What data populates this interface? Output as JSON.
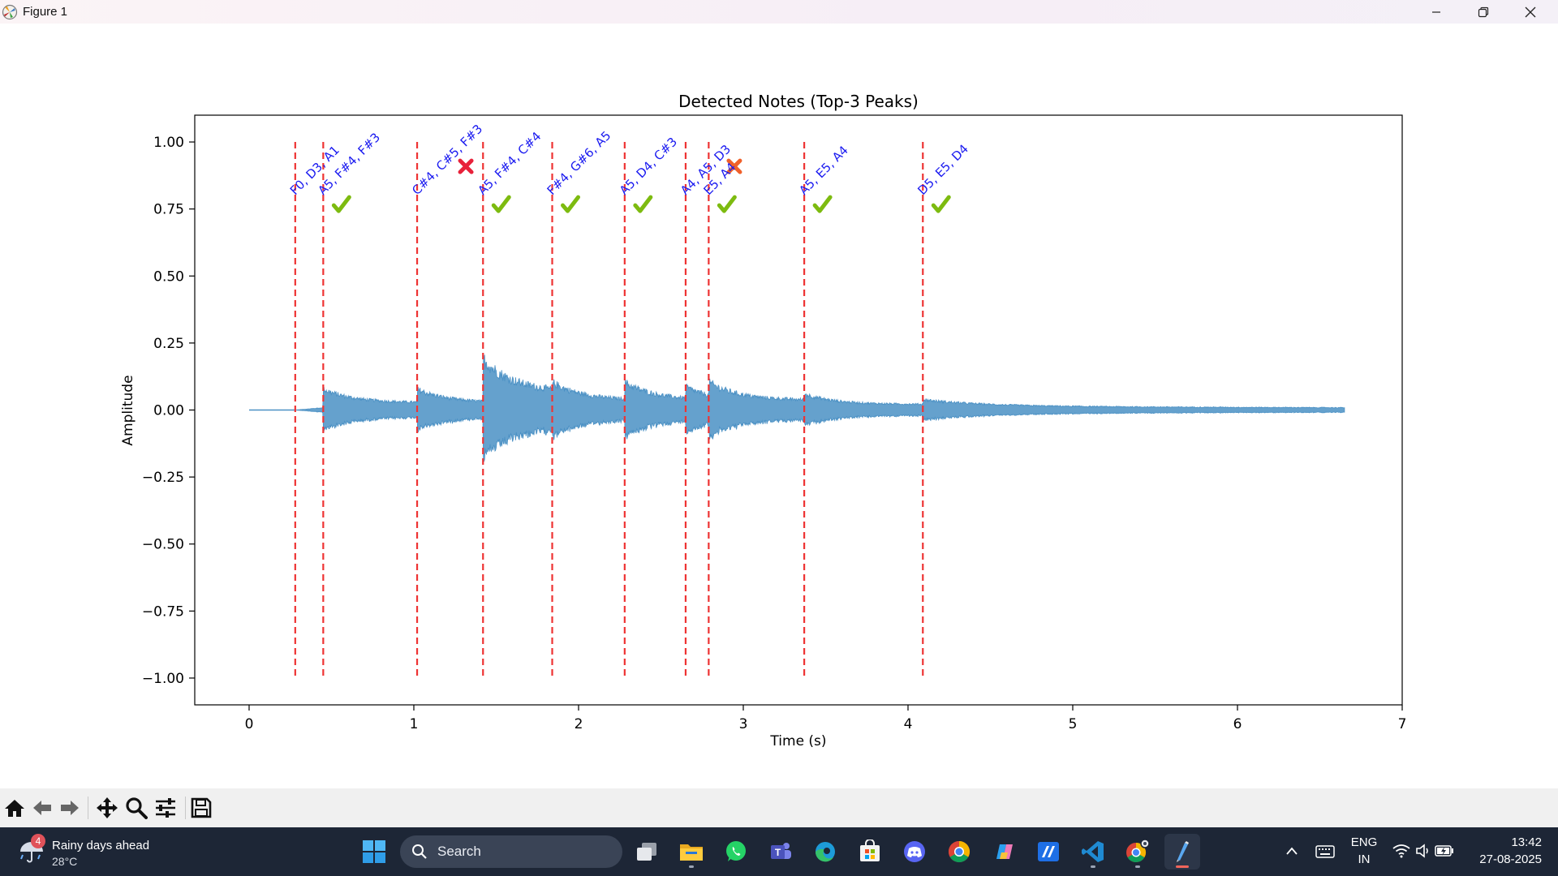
{
  "window": {
    "title": "Figure 1",
    "controls": [
      "minimize",
      "restore",
      "close"
    ]
  },
  "chart_data": {
    "type": "line",
    "title": "Detected Notes (Top-3 Peaks)",
    "xlabel": "Time (s)",
    "ylabel": "Amplitude",
    "xlim": [
      -0.33,
      7.0
    ],
    "ylim": [
      -1.1,
      1.1
    ],
    "x_ticks": [
      0,
      1,
      2,
      3,
      4,
      5,
      6,
      7
    ],
    "x_tick_labels": [
      "0",
      "1",
      "2",
      "3",
      "4",
      "5",
      "6",
      "7"
    ],
    "y_ticks": [
      1.0,
      0.75,
      0.5,
      0.25,
      0.0,
      -0.25,
      -0.5,
      -0.75,
      -1.0
    ],
    "y_tick_labels": [
      "1.00",
      "0.75",
      "0.50",
      "0.25",
      "0.00",
      "−0.25",
      "−0.50",
      "−0.75",
      "−1.00"
    ],
    "waveform": {
      "color": "#4a90c4",
      "duration": 6.65,
      "signal_start": 0.28,
      "pre_onset_amplitude": 0.01,
      "decay_tail": 0.08,
      "attack_amplitudes": [
        0.09,
        0.09,
        0.22,
        0.12,
        0.12,
        0.1,
        0.12,
        0.07,
        0.03
      ]
    },
    "onset_style": {
      "color": "#ee3333",
      "dash": "dashed",
      "ymin": -1.0,
      "ymax": 1.0
    },
    "onsets": [
      0.28,
      0.45,
      1.02,
      1.42,
      1.84,
      2.28,
      2.65,
      2.79,
      3.37,
      4.09
    ],
    "note_labels": [
      {
        "t": 0.28,
        "text": "F0, D3, A1",
        "mark": "none"
      },
      {
        "t": 0.45,
        "text": "A5, F#4, F#3",
        "mark": "check"
      },
      {
        "t": 1.02,
        "text": "C#4, C#5, F#3",
        "mark": "cross"
      },
      {
        "t": 1.42,
        "text": "A5, F#4, C#4",
        "mark": "check"
      },
      {
        "t": 1.84,
        "text": "F#4, G#6, A5",
        "mark": "check"
      },
      {
        "t": 2.28,
        "text": "A5, D4, C#3",
        "mark": "check"
      },
      {
        "t": 2.65,
        "text": "A4, A5, D3",
        "mark": "cross"
      },
      {
        "t": 2.79,
        "text": "E5, A4",
        "mark": "check"
      },
      {
        "t": 3.37,
        "text": "A5, E5, A4",
        "mark": "check"
      },
      {
        "t": 4.09,
        "text": "D5, E5, D4",
        "mark": "check"
      }
    ],
    "label_color": "#1a1af0",
    "check_color": "#7dbb10",
    "cross_colors": [
      "#e8213a",
      "#f0602a"
    ]
  },
  "toolbar": {
    "icons": [
      "home-icon",
      "back-icon",
      "forward-icon",
      "pan-icon",
      "zoom-icon",
      "configure-subplots-icon",
      "save-icon"
    ]
  },
  "taskbar": {
    "weather": {
      "badge": "4",
      "headline": "Rainy days ahead",
      "temperature": "28°C"
    },
    "search_label": "Search",
    "language": {
      "line1": "ENG",
      "line2": "IN"
    },
    "clock": {
      "time": "13:42",
      "date": "27-08-2025"
    },
    "apps": [
      "task-view-icon",
      "file-explorer-icon",
      "whatsapp-icon",
      "teams-icon",
      "edge-icon",
      "microsoft-store-icon",
      "discord-icon",
      "chrome-icon",
      "copilot-icon",
      "mathpix-icon",
      "vscode-icon",
      "chrome-profile-icon",
      "python-figure-icon"
    ]
  }
}
